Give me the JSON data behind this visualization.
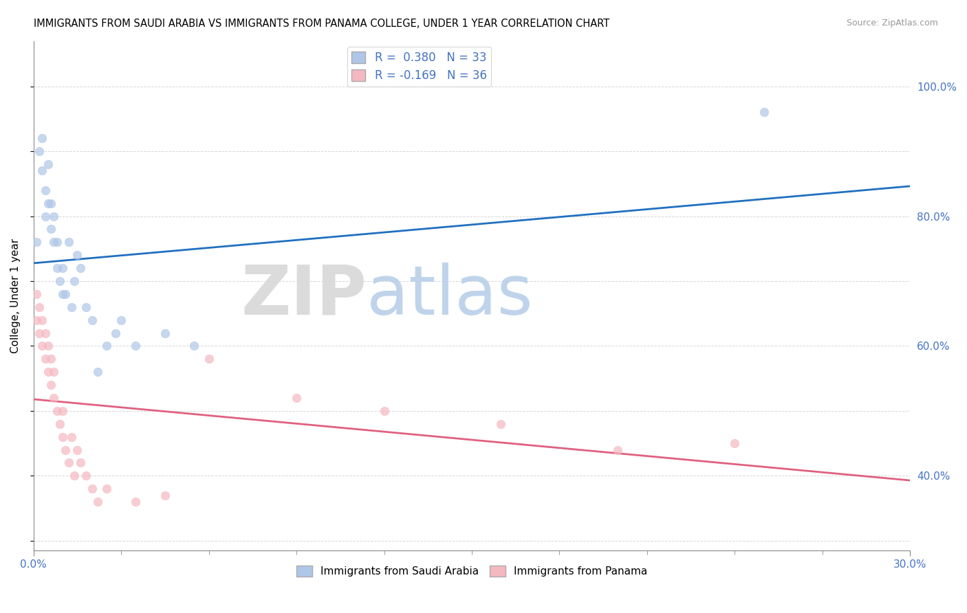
{
  "title": "IMMIGRANTS FROM SAUDI ARABIA VS IMMIGRANTS FROM PANAMA COLLEGE, UNDER 1 YEAR CORRELATION CHART",
  "source": "Source: ZipAtlas.com",
  "ylabel": "College, Under 1 year",
  "ylabel_right_labels": [
    "40.0%",
    "60.0%",
    "80.0%",
    "100.0%"
  ],
  "ylabel_right_values": [
    0.4,
    0.6,
    0.8,
    1.0
  ],
  "r_saudi": 0.38,
  "n_saudi": 33,
  "r_panama": -0.169,
  "n_panama": 36,
  "xmin": 0.0,
  "xmax": 0.3,
  "ymin": 0.285,
  "ymax": 1.07,
  "saudi_color": "#aec6e8",
  "panama_color": "#f4b8c1",
  "trendline_saudi_color": "#2070c0",
  "trendline_panama_color": "#e06080",
  "saudi_x": [
    0.001,
    0.002,
    0.003,
    0.003,
    0.004,
    0.004,
    0.005,
    0.005,
    0.006,
    0.006,
    0.007,
    0.007,
    0.008,
    0.008,
    0.009,
    0.01,
    0.01,
    0.011,
    0.012,
    0.013,
    0.014,
    0.015,
    0.016,
    0.018,
    0.02,
    0.022,
    0.025,
    0.028,
    0.03,
    0.035,
    0.045,
    0.055,
    0.25
  ],
  "saudi_y": [
    0.76,
    0.9,
    0.87,
    0.92,
    0.8,
    0.84,
    0.82,
    0.88,
    0.78,
    0.82,
    0.76,
    0.8,
    0.72,
    0.76,
    0.7,
    0.68,
    0.72,
    0.68,
    0.76,
    0.66,
    0.7,
    0.74,
    0.72,
    0.66,
    0.64,
    0.56,
    0.6,
    0.62,
    0.64,
    0.6,
    0.62,
    0.6,
    0.96
  ],
  "panama_x": [
    0.001,
    0.001,
    0.002,
    0.002,
    0.003,
    0.003,
    0.004,
    0.004,
    0.005,
    0.005,
    0.006,
    0.006,
    0.007,
    0.007,
    0.008,
    0.009,
    0.01,
    0.01,
    0.011,
    0.012,
    0.013,
    0.014,
    0.015,
    0.016,
    0.018,
    0.02,
    0.022,
    0.025,
    0.035,
    0.045,
    0.06,
    0.09,
    0.12,
    0.16,
    0.2,
    0.24
  ],
  "panama_y": [
    0.64,
    0.68,
    0.62,
    0.66,
    0.6,
    0.64,
    0.58,
    0.62,
    0.56,
    0.6,
    0.54,
    0.58,
    0.52,
    0.56,
    0.5,
    0.48,
    0.46,
    0.5,
    0.44,
    0.42,
    0.46,
    0.4,
    0.44,
    0.42,
    0.4,
    0.38,
    0.36,
    0.38,
    0.36,
    0.37,
    0.58,
    0.52,
    0.5,
    0.48,
    0.44,
    0.45
  ],
  "background_color": "#ffffff",
  "grid_color": "#cccccc",
  "legend_label_color": "#4472c4"
}
